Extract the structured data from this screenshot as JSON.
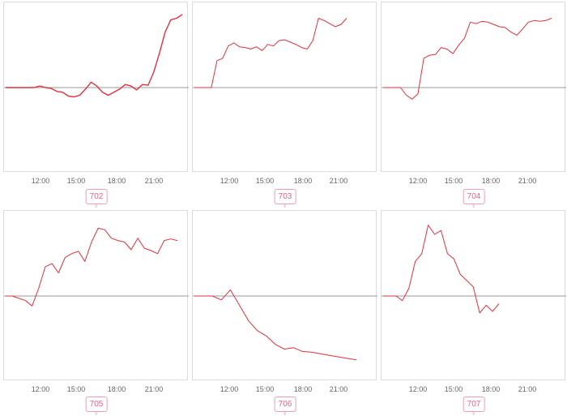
{
  "colors": {
    "line": "#e62e3c",
    "baseline": "#9a9a9a",
    "badge_border": "#f39bb8",
    "badge_text": "#e85f8e"
  },
  "chart_data": [
    {
      "type": "line",
      "label": "702",
      "x_ticks": [
        "12:00",
        "15:00",
        "18:00",
        "21:00"
      ],
      "y_range": [
        -1.0,
        1.0
      ],
      "baseline": 0,
      "series": [
        {
          "values": [
            0,
            0,
            0,
            0,
            0,
            0,
            0.02,
            0.0,
            -0.01,
            -0.05,
            -0.06,
            -0.11,
            -0.12,
            -0.1,
            -0.02,
            0.07,
            0.02,
            -0.06,
            -0.1,
            -0.06,
            -0.02,
            0.04,
            0.02,
            -0.03,
            0.04,
            0.03,
            0.2,
            0.45,
            0.72,
            0.88,
            0.9,
            0.95
          ]
        }
      ]
    },
    {
      "type": "line",
      "label": "703",
      "x_ticks": [
        "12:00",
        "15:00",
        "18:00",
        "21:00"
      ],
      "y_range": [
        -1.0,
        1.0
      ],
      "baseline": 0,
      "series": [
        {
          "values": [
            0,
            0,
            0,
            0,
            0.35,
            0.38,
            0.54,
            0.58,
            0.53,
            0.52,
            0.5,
            0.53,
            0.48,
            0.56,
            0.54,
            0.61,
            0.62,
            0.59,
            0.56,
            0.52,
            0.5,
            0.61,
            0.9,
            0.87,
            0.83,
            0.79,
            0.82,
            0.9
          ]
        }
      ]
    },
    {
      "type": "line",
      "label": "704",
      "x_ticks": [
        "12:00",
        "15:00",
        "18:00",
        "21:00"
      ],
      "y_range": [
        -1.0,
        1.0
      ],
      "baseline": 0,
      "series": [
        {
          "values": [
            0,
            0,
            0,
            0,
            -0.1,
            -0.15,
            -0.08,
            0.38,
            0.42,
            0.43,
            0.52,
            0.5,
            0.44,
            0.55,
            0.64,
            0.85,
            0.83,
            0.86,
            0.85,
            0.82,
            0.79,
            0.78,
            0.72,
            0.68,
            0.76,
            0.85,
            0.87,
            0.86,
            0.87,
            0.9
          ]
        }
      ]
    },
    {
      "type": "line",
      "label": "705",
      "x_ticks": [
        "12:00",
        "15:00",
        "18:00",
        "21:00"
      ],
      "y_range": [
        -1.0,
        1.0
      ],
      "baseline": 0,
      "series": [
        {
          "values": [
            0,
            0,
            -0.03,
            -0.06,
            -0.13,
            0.1,
            0.38,
            0.42,
            0.3,
            0.5,
            0.55,
            0.58,
            0.45,
            0.7,
            0.88,
            0.86,
            0.75,
            0.72,
            0.7,
            0.6,
            0.75,
            0.62,
            0.59,
            0.55,
            0.72,
            0.74,
            0.72
          ]
        }
      ]
    },
    {
      "type": "line",
      "label": "706",
      "x_ticks": [
        "12:00",
        "15:00",
        "18:00",
        "21:00"
      ],
      "y_range": [
        -1.0,
        1.0
      ],
      "baseline": 0,
      "series": [
        {
          "values": [
            0,
            0,
            0,
            -0.05,
            0.08,
            -0.12,
            -0.32,
            -0.45,
            -0.52,
            -0.63,
            -0.69,
            -0.67,
            -0.72,
            -0.73,
            -0.75,
            -0.77,
            -0.79,
            -0.81,
            -0.83
          ]
        }
      ]
    },
    {
      "type": "line",
      "label": "707",
      "x_ticks": [
        "12:00",
        "15:00",
        "18:00",
        "21:00"
      ],
      "y_range": [
        -1.0,
        1.0
      ],
      "baseline": 0,
      "series": [
        {
          "values": [
            0,
            0,
            0,
            -0.06,
            0.1,
            0.45,
            0.55,
            0.92,
            0.8,
            0.85,
            0.55,
            0.48,
            0.28,
            0.2,
            0.12,
            -0.22,
            -0.12,
            -0.2,
            -0.1
          ]
        }
      ]
    }
  ]
}
